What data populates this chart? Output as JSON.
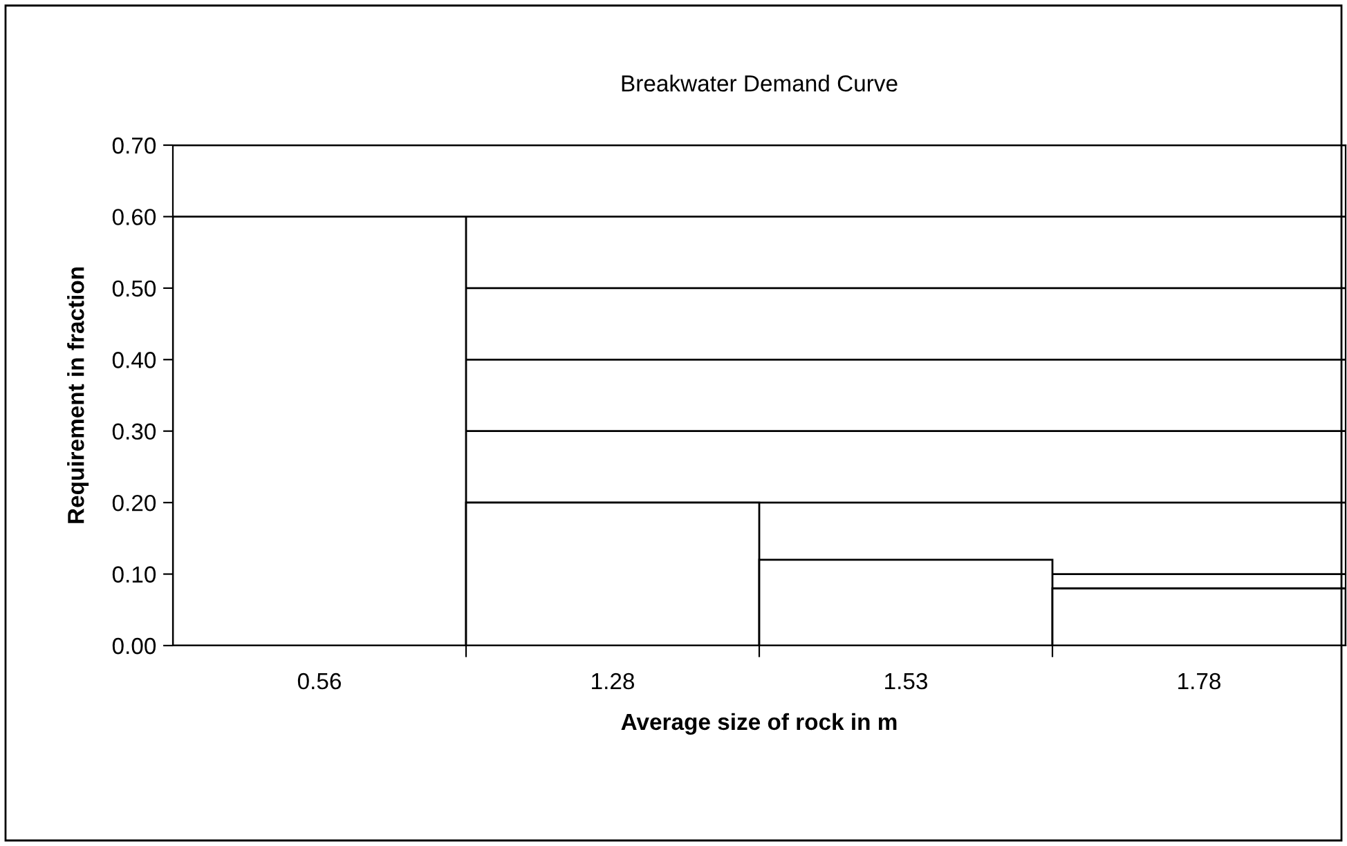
{
  "chart_data": {
    "type": "bar",
    "title": "Breakwater Demand Curve",
    "xlabel": "Average size of rock in m",
    "ylabel": "Requirement in fraction",
    "categories": [
      "0.56",
      "1.28",
      "1.53",
      "1.78"
    ],
    "series": [
      {
        "color": "#ffffff",
        "values": [
          0.6,
          0.2,
          0.12,
          0.08
        ]
      }
    ],
    "ylim": [
      0,
      0.7
    ],
    "yticks": [
      {
        "value": 0,
        "label": "0.00"
      },
      {
        "value": 0.1,
        "label": "0.10"
      },
      {
        "value": 0.2,
        "label": "0.20"
      },
      {
        "value": 0.3,
        "label": "0.30"
      },
      {
        "value": 0.4,
        "label": "0.40"
      },
      {
        "value": 0.5,
        "label": "0.50"
      },
      {
        "value": 0.6,
        "label": "0.60"
      },
      {
        "value": 0.7,
        "label": "0.70"
      }
    ],
    "grid": "y",
    "legend": false
  }
}
